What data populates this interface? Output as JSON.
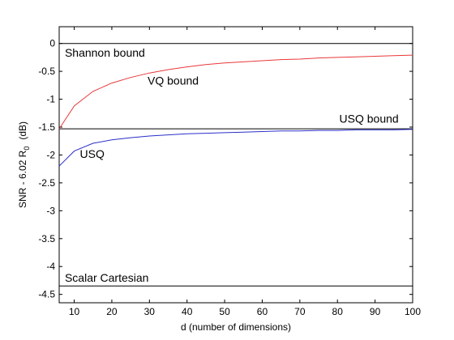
{
  "chart_data": {
    "type": "line",
    "xlabel": "d  (number of dimensions)",
    "ylabel_main": "SNR - 6.02 R",
    "ylabel_sub": "0",
    "ylabel_unit": "(dB)",
    "xlim": [
      6,
      100
    ],
    "ylim": [
      -4.65,
      0.3
    ],
    "xticks": [
      10,
      20,
      30,
      40,
      50,
      60,
      70,
      80,
      90,
      100
    ],
    "yticks": [
      0,
      -0.5,
      -1,
      -1.5,
      -2,
      -2.5,
      -3,
      -3.5,
      -4,
      -4.5
    ],
    "ytick_labels": [
      "0",
      "-0.5",
      "-1",
      "-1.5",
      "-2",
      "-2.5",
      "-3",
      "-3.5",
      "-4",
      "-4.5"
    ],
    "grid": false,
    "series": [
      {
        "name": "Shannon bound",
        "color": "#000000",
        "x": [
          6,
          100
        ],
        "values": [
          0,
          0
        ]
      },
      {
        "name": "USQ bound",
        "color": "#000000",
        "x": [
          6,
          100
        ],
        "values": [
          -1.53,
          -1.53
        ]
      },
      {
        "name": "Scalar Cartesian",
        "color": "#000000",
        "x": [
          6,
          100
        ],
        "values": [
          -4.35,
          -4.35
        ]
      },
      {
        "name": "VQ bound",
        "color": "#e8383a",
        "x": [
          6,
          10,
          15,
          20,
          25,
          30,
          35,
          40,
          45,
          50,
          55,
          60,
          65,
          70,
          75,
          80,
          85,
          90,
          95,
          100
        ],
        "values": [
          -1.53,
          -1.12,
          -0.86,
          -0.71,
          -0.61,
          -0.53,
          -0.47,
          -0.42,
          -0.38,
          -0.35,
          -0.33,
          -0.31,
          -0.29,
          -0.28,
          -0.26,
          -0.25,
          -0.24,
          -0.23,
          -0.22,
          -0.21
        ]
      },
      {
        "name": "USQ",
        "color": "#2a2fc8",
        "x": [
          6,
          10,
          15,
          20,
          25,
          30,
          35,
          40,
          45,
          50,
          55,
          60,
          65,
          70,
          75,
          80,
          85,
          90,
          95,
          100
        ],
        "values": [
          -2.2,
          -1.93,
          -1.79,
          -1.73,
          -1.69,
          -1.66,
          -1.64,
          -1.62,
          -1.61,
          -1.6,
          -1.59,
          -1.58,
          -1.57,
          -1.57,
          -1.56,
          -1.56,
          -1.55,
          -1.55,
          -1.55,
          -1.54
        ]
      }
    ],
    "annotations": [
      {
        "text": "Shannon bound",
        "x": 7.5,
        "y": -0.24
      },
      {
        "text": "VQ bound",
        "x": 29.5,
        "y": -0.74
      },
      {
        "text": "USQ bound",
        "x": 80.5,
        "y": -1.42
      },
      {
        "text": "USQ",
        "x": 11.5,
        "y": -2.05
      },
      {
        "text": "Scalar Cartesian",
        "x": 7.5,
        "y": -4.27
      }
    ]
  }
}
